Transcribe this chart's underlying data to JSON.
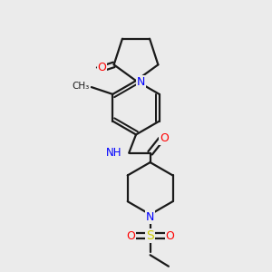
{
  "bg_color": "#ebebeb",
  "bond_color": "#1a1a1a",
  "N_color": "#0000ff",
  "O_color": "#ff0000",
  "S_color": "#cccc00",
  "line_width": 1.6,
  "dbo": 0.008,
  "figsize": [
    3.0,
    3.0
  ],
  "dpi": 100,
  "xlim": [
    0.15,
    0.85
  ],
  "ylim": [
    0.02,
    0.98
  ]
}
